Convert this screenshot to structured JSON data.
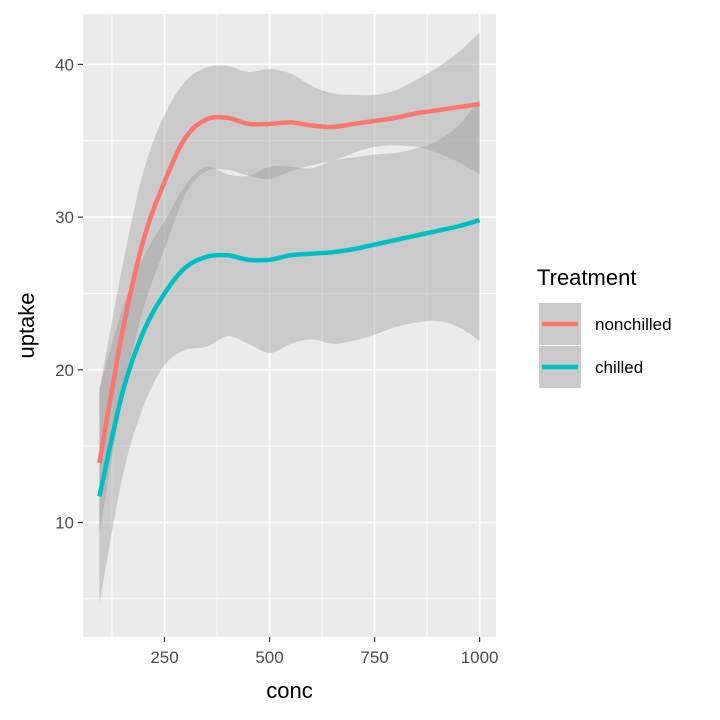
{
  "chart_data": {
    "type": "line",
    "xlabel": "conc",
    "ylabel": "uptake",
    "xlim": [
      56,
      1039
    ],
    "ylim": [
      2.5,
      43.3
    ],
    "x_ticks": [
      250,
      500,
      750,
      1000
    ],
    "y_ticks": [
      10,
      20,
      30,
      40
    ],
    "x_tick_labels": [
      "250",
      "500",
      "750",
      "1000"
    ],
    "y_tick_labels": [
      "10",
      "20",
      "30",
      "40"
    ],
    "grid": true,
    "legend": {
      "title": "Treatment",
      "placement": "right"
    },
    "series": [
      {
        "name": "nonchilled",
        "color": "#F8766D",
        "x": [
          95,
          150,
          200,
          250,
          300,
          350,
          400,
          450,
          500,
          550,
          600,
          650,
          700,
          750,
          800,
          850,
          900,
          950,
          1000
        ],
        "y": [
          13.9,
          22.5,
          28.5,
          32.3,
          35.2,
          36.4,
          36.5,
          36.1,
          36.1,
          36.2,
          36.0,
          35.9,
          36.1,
          36.3,
          36.5,
          36.8,
          37.0,
          37.2,
          37.4
        ],
        "ci_lower": [
          9.2,
          18.2,
          24.0,
          27.9,
          31.5,
          33.0,
          33.1,
          32.7,
          32.5,
          33.0,
          33.4,
          33.7,
          34.2,
          34.6,
          34.7,
          34.6,
          34.2,
          33.6,
          32.8
        ],
        "ci_upper": [
          18.6,
          26.8,
          33.0,
          36.7,
          38.9,
          39.8,
          39.9,
          39.5,
          39.7,
          39.4,
          38.6,
          38.1,
          38.0,
          38.0,
          38.3,
          39.0,
          39.8,
          40.8,
          42.1
        ]
      },
      {
        "name": "chilled",
        "color": "#00BFC4",
        "x": [
          95,
          150,
          200,
          250,
          300,
          350,
          400,
          450,
          500,
          550,
          600,
          650,
          700,
          750,
          800,
          850,
          900,
          950,
          1000
        ],
        "y": [
          11.7,
          18.5,
          22.5,
          25.0,
          26.7,
          27.4,
          27.5,
          27.2,
          27.2,
          27.5,
          27.6,
          27.7,
          27.9,
          28.2,
          28.5,
          28.8,
          29.1,
          29.4,
          29.8
        ],
        "ci_lower": [
          4.6,
          13.0,
          17.6,
          20.3,
          21.3,
          21.5,
          22.2,
          21.7,
          21.1,
          21.7,
          22.0,
          21.7,
          21.9,
          22.3,
          22.8,
          23.1,
          23.2,
          22.8,
          21.9
        ],
        "ci_upper": [
          18.8,
          24.0,
          27.4,
          29.7,
          32.1,
          33.3,
          32.8,
          32.7,
          33.3,
          33.3,
          33.2,
          33.7,
          33.9,
          34.1,
          34.2,
          34.5,
          35.0,
          36.0,
          37.7
        ]
      }
    ]
  }
}
